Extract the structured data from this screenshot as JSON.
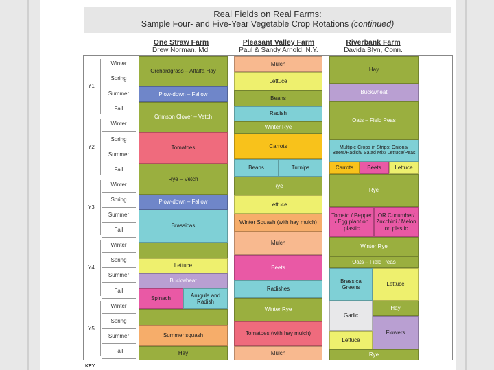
{
  "title": {
    "line1": "Real Fields on Real Farms:",
    "line2": "Sample Four- and Five-Year Vegetable Crop Rotations",
    "line2_suffix": "(continued)"
  },
  "farms": [
    {
      "name": "One Straw Farm",
      "people": "Drew Norman, Md."
    },
    {
      "name": "Pleasant Valley Farm",
      "people": "Paul & Sandy Arnold, N.Y."
    },
    {
      "name": "Riverbank Farm",
      "people": "Davida Blyn, Conn."
    }
  ],
  "years": [
    "Y1",
    "Y2",
    "Y3",
    "Y4",
    "Y5"
  ],
  "seasons": [
    "Winter",
    "Spring",
    "Summer",
    "Fall"
  ],
  "crops": {
    "one_straw": {
      "orchardgrass": "Orchardgrass – Alfalfa Hay",
      "plowdown1": "Plow-down – Fallow",
      "clover": "Crimson Clover – Vetch",
      "tomatoes": "Tomatoes",
      "ryevetch": "Rye – Vetch",
      "plowdown2": "Plow-down – Fallow",
      "brassicas": "Brassicas",
      "lettuce": "Lettuce",
      "buckwheat": "Buckwheat",
      "spinach": "Spinach",
      "arugula": "Arugula and Radish",
      "summersquash": "Summer squash",
      "hay": "Hay"
    },
    "pleasant_valley": {
      "mulch1": "Mulch",
      "lettuce1": "Lettuce",
      "beans1": "Beans",
      "radish": "Radish",
      "winterrye1": "Winter Rye",
      "carrots": "Carrots",
      "beans2": "Beans",
      "turnips": "Turnips",
      "rye": "Rye",
      "lettuce2": "Lettuce",
      "wintersquash": "Winter Squash (with hay mulch)",
      "mulch2": "Mulch",
      "beets": "Beets",
      "radishes": "Radishes",
      "winterrye2": "Winter Rye",
      "tomatoes": "Tomatoes (with hay mulch)",
      "mulch3": "Mulch"
    },
    "riverbank": {
      "hay1": "Hay",
      "buckwheat": "Buckwheat",
      "oats1": "Oats – Field Peas",
      "multiple": "Multiple Crops in Strips: Onions/ Beets/Radish/ Salad Mix/ Lettuce/Peas",
      "carrots": "Carrots",
      "beets": "Beets",
      "lettuce1": "Lettuce",
      "rye": "Rye",
      "tomato": "Tomato / Pepper / Egg plant on plastic",
      "cucumber": "OR Cucumber/ Zucchini / Melon on plastic",
      "winterrye": "Winter Rye",
      "oats2": "Oats – Field Peas",
      "brassica": "Brassica Greens",
      "lettuce2": "Lettuce",
      "garlic": "Garlic",
      "hay2": "Hay",
      "lettuce3": "Lettuce",
      "flowers": "Flowers",
      "rye2": "Rye"
    }
  },
  "key": "KEY",
  "colors": {
    "green": "#9aaf3f",
    "yellow": "#eef06e",
    "blue": "#6f86c9",
    "pink": "#ef6b7d",
    "cyan": "#7fd0d6",
    "purple": "#b99fd2",
    "peach": "#f8b98f",
    "orange": "#f6ad6a",
    "gold": "#f8c21b",
    "magenta": "#e959a5",
    "lightgray": "#e8e8ea"
  }
}
